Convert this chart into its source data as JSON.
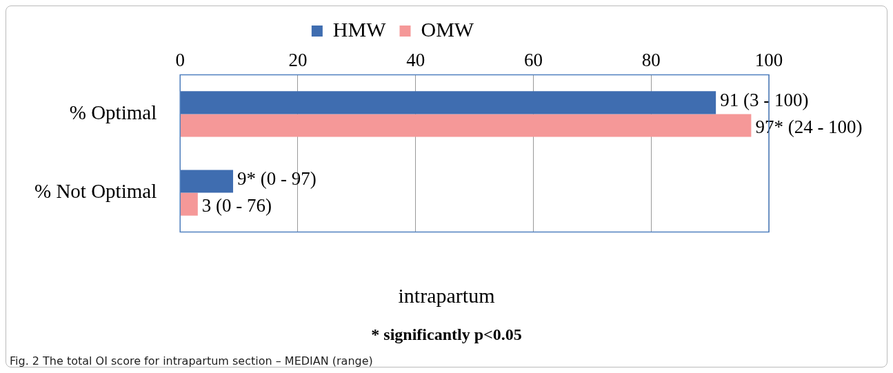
{
  "chart_data": {
    "type": "bar",
    "orientation": "horizontal",
    "categories": [
      "% Optimal",
      "% Not Optimal"
    ],
    "series": [
      {
        "name": "HMW",
        "color": "#3f6db0",
        "values": [
          91,
          9
        ],
        "value_labels": [
          "91 (3 - 100)",
          "9* (0 - 97)"
        ]
      },
      {
        "name": "OMW",
        "color": "#f59898",
        "values": [
          97,
          3
        ],
        "value_labels": [
          "97* (24 - 100)",
          "3 (0 - 76)"
        ]
      }
    ],
    "xlim": [
      0,
      100
    ],
    "xticks": [
      0,
      20,
      40,
      60,
      80,
      100
    ],
    "grid": "x",
    "legend": "top",
    "xlabel": "intrapartum",
    "annotations": [
      "* significantly p<0.05",
      "Fig. 2 The total OI score for intrapartum section – MEDIAN (range)"
    ]
  }
}
